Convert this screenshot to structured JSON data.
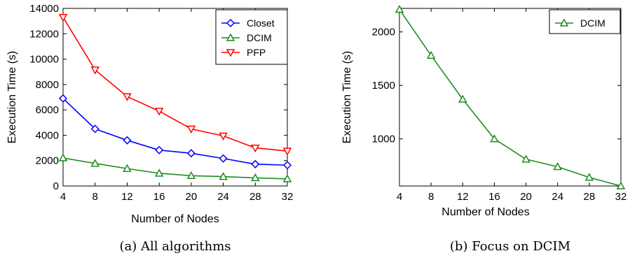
{
  "chart_data": [
    {
      "type": "line",
      "caption": "(a) All algorithms",
      "xlabel": "Number of Nodes",
      "ylabel": "Execution Time (s)",
      "x": [
        4,
        8,
        12,
        16,
        20,
        24,
        28,
        32
      ],
      "xlim": [
        4,
        32
      ],
      "ylim": [
        0,
        14000
      ],
      "xticks": [
        4,
        8,
        12,
        16,
        20,
        24,
        28,
        32
      ],
      "yticks": [
        0,
        2000,
        4000,
        6000,
        8000,
        10000,
        12000,
        14000
      ],
      "legend_position": "top-right",
      "grid": false,
      "series": [
        {
          "name": "Closet",
          "color": "#0000ff",
          "marker": "diamond",
          "values": [
            6900,
            4500,
            3600,
            2830,
            2580,
            2170,
            1720,
            1640
          ]
        },
        {
          "name": "DCIM",
          "color": "#1e8c1e",
          "marker": "triangle-up",
          "values": [
            2210,
            1780,
            1370,
            1000,
            810,
            740,
            640,
            560
          ]
        },
        {
          "name": "PFP",
          "color": "#ff0000",
          "marker": "triangle-down",
          "values": [
            13300,
            9150,
            7050,
            5900,
            4500,
            3950,
            3000,
            2750
          ]
        }
      ]
    },
    {
      "type": "line",
      "caption": "(b) Focus on DCIM",
      "xlabel": "Number of Nodes",
      "ylabel": "Execution Time (s)",
      "x": [
        4,
        8,
        12,
        16,
        20,
        24,
        28,
        32
      ],
      "xlim": [
        4,
        32
      ],
      "ylim": [
        560,
        2220
      ],
      "xticks": [
        4,
        8,
        12,
        16,
        20,
        24,
        28,
        32
      ],
      "yticks": [
        1000,
        1500,
        2000
      ],
      "legend_position": "top-right",
      "grid": false,
      "series": [
        {
          "name": "DCIM",
          "color": "#1e8c1e",
          "marker": "triangle-up",
          "values": [
            2210,
            1780,
            1370,
            1000,
            810,
            740,
            640,
            560
          ]
        }
      ]
    }
  ]
}
